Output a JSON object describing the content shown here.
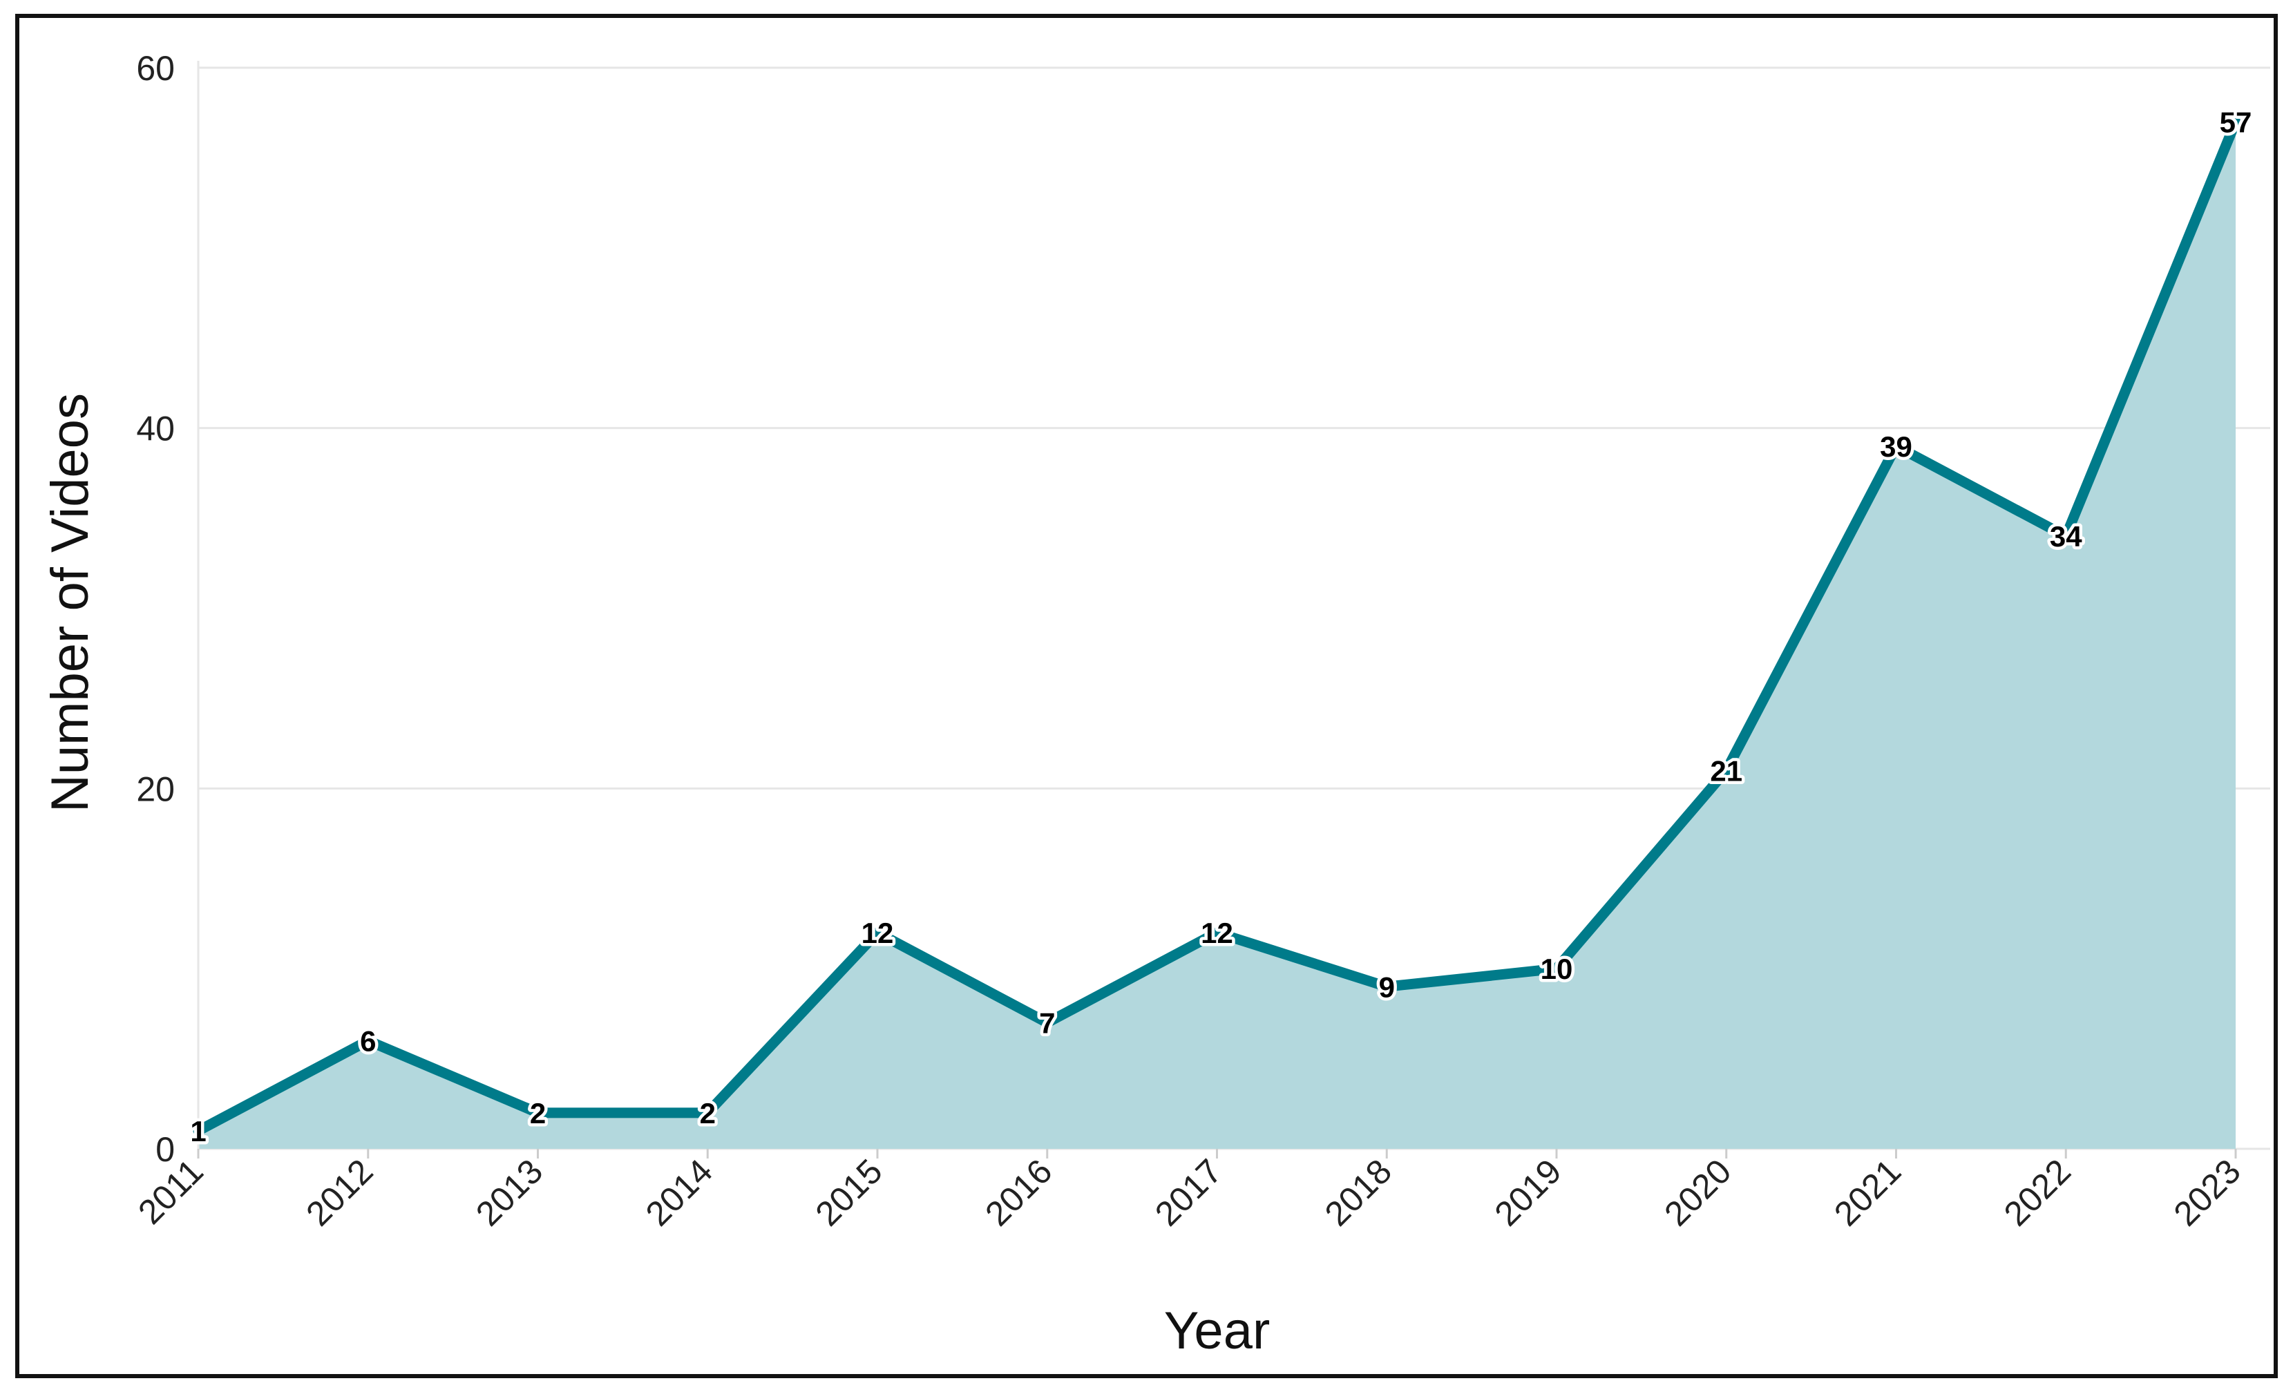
{
  "chart_data": {
    "type": "area",
    "title": "",
    "xlabel": "Year",
    "ylabel": "Number of Videos",
    "x": [
      "2011",
      "2012",
      "2013",
      "2014",
      "2015",
      "2016",
      "2017",
      "2018",
      "2019",
      "2020",
      "2021",
      "2022",
      "2023"
    ],
    "series": [
      {
        "values": [
          1,
          6,
          2,
          2,
          12,
          7,
          12,
          9,
          10,
          21,
          39,
          34,
          57
        ]
      }
    ],
    "ylim": [
      0,
      60
    ],
    "yticks": [
      0,
      20,
      40,
      60
    ],
    "grid": "horizontal",
    "legend": "none",
    "colors": {
      "line": "#007b8a",
      "fill": "#b3d8dd",
      "grid": "#e6e6e6"
    }
  }
}
